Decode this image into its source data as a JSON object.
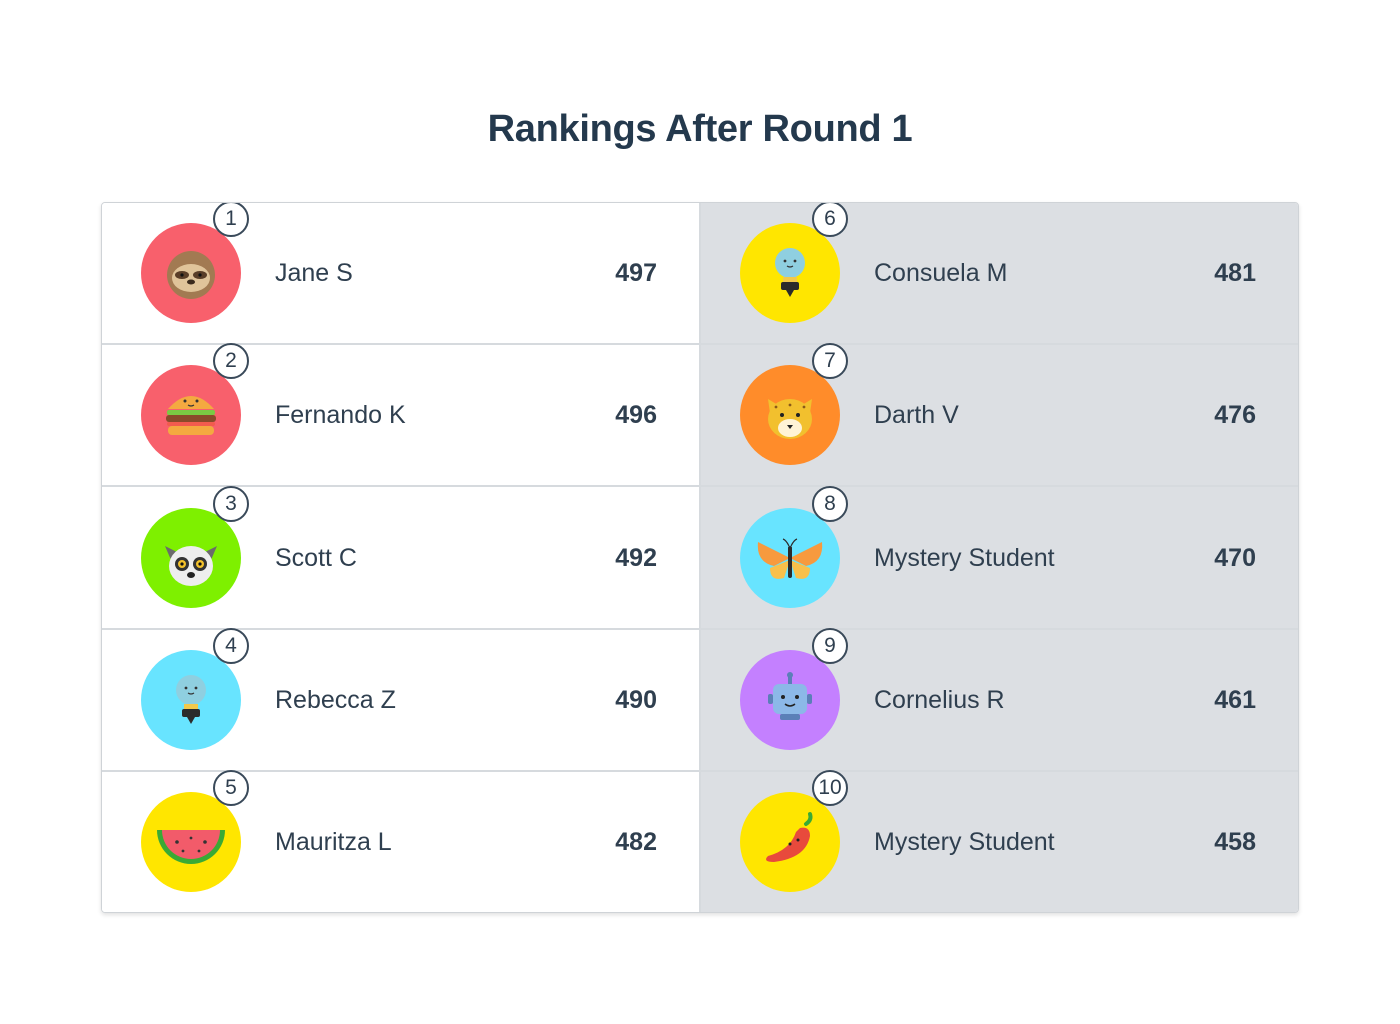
{
  "title": "Rankings After Round 1",
  "players": [
    {
      "rank": "1",
      "name": "Jane S",
      "score": "497",
      "avatar": "sloth-icon",
      "color": "#f8606c"
    },
    {
      "rank": "2",
      "name": "Fernando K",
      "score": "496",
      "avatar": "burger-icon",
      "color": "#f8606c"
    },
    {
      "rank": "3",
      "name": "Scott C",
      "score": "492",
      "avatar": "lemur-icon",
      "color": "#7ef000"
    },
    {
      "rank": "4",
      "name": "Rebecca Z",
      "score": "490",
      "avatar": "lightbulb-icon",
      "color": "#68e4ff"
    },
    {
      "rank": "5",
      "name": "Mauritza L",
      "score": "482",
      "avatar": "watermelon-icon",
      "color": "#ffe600"
    },
    {
      "rank": "6",
      "name": "Consuela M",
      "score": "481",
      "avatar": "lightbulb-icon",
      "color": "#ffe600"
    },
    {
      "rank": "7",
      "name": "Darth V",
      "score": "476",
      "avatar": "cheetah-icon",
      "color": "#ff8c2a"
    },
    {
      "rank": "8",
      "name": "Mystery Student",
      "score": "470",
      "avatar": "butterfly-icon",
      "color": "#68e4ff"
    },
    {
      "rank": "9",
      "name": "Cornelius R",
      "score": "461",
      "avatar": "robot-icon",
      "color": "#c480ff"
    },
    {
      "rank": "10",
      "name": "Mystery Student",
      "score": "458",
      "avatar": "chili-pepper-icon",
      "color": "#ffe600"
    }
  ]
}
